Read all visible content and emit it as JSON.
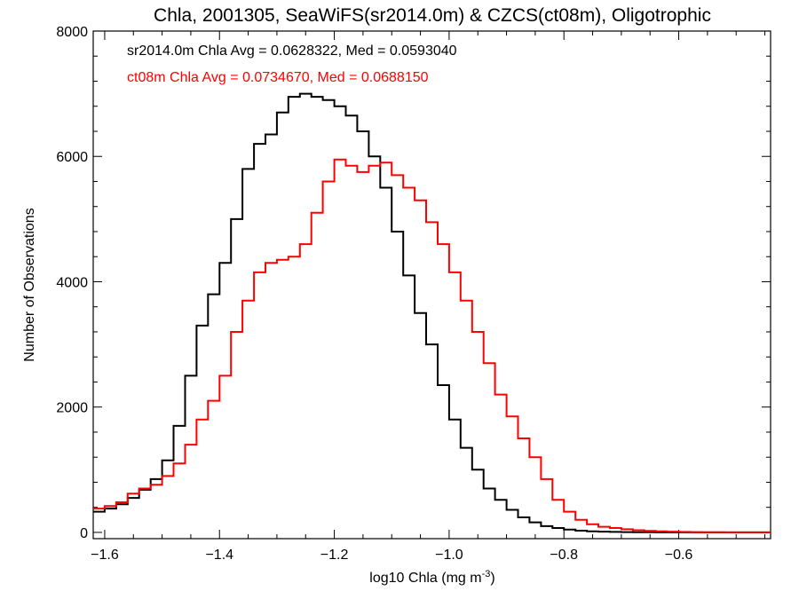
{
  "chart_data": {
    "type": "line",
    "title": "Chla, 2001305, SeaWiFS(sr2014.0m) & CZCS(ct08m), Oligotrophic",
    "xlabel": "log10 Chla (mg m",
    "xlabel_sup": "-3",
    "xlabel_end": ")",
    "ylabel": "Number of Observations",
    "xlim": [
      -1.62,
      -0.44
    ],
    "ylim": [
      -100,
      8000
    ],
    "x_ticks": [
      -1.6,
      -1.4,
      -1.2,
      -1.0,
      -0.8,
      -0.6
    ],
    "x_tick_labels": [
      "−1.6",
      "−1.4",
      "−1.2",
      "−1.0",
      "−0.8",
      "−0.6"
    ],
    "y_ticks": [
      0,
      2000,
      4000,
      6000,
      8000
    ],
    "y_tick_labels": [
      "0",
      "2000",
      "4000",
      "6000",
      "8000"
    ],
    "grid": false,
    "series": [
      {
        "name": "sr2014.0m",
        "color": "#000000",
        "annotation": "sr2014.0m Chla Avg = 0.0628322, Med = 0.0593040",
        "x": [
          -1.62,
          -1.6,
          -1.58,
          -1.56,
          -1.54,
          -1.52,
          -1.5,
          -1.48,
          -1.46,
          -1.44,
          -1.42,
          -1.4,
          -1.38,
          -1.36,
          -1.34,
          -1.32,
          -1.3,
          -1.28,
          -1.26,
          -1.24,
          -1.22,
          -1.2,
          -1.18,
          -1.16,
          -1.14,
          -1.12,
          -1.1,
          -1.08,
          -1.06,
          -1.04,
          -1.02,
          -1.0,
          -0.98,
          -0.96,
          -0.94,
          -0.92,
          -0.9,
          -0.88,
          -0.86,
          -0.84,
          -0.82,
          -0.8,
          -0.78,
          -0.76,
          -0.74,
          -0.72,
          -0.7,
          -0.68,
          -0.66,
          -0.64,
          -0.62,
          -0.6,
          -0.58,
          -0.56,
          -0.54,
          -0.52,
          -0.5,
          -0.48,
          -0.46,
          -0.44
        ],
        "y": [
          330,
          380,
          450,
          550,
          680,
          850,
          1150,
          1700,
          2500,
          3300,
          3800,
          4300,
          5000,
          5800,
          6200,
          6350,
          6700,
          6950,
          7000,
          6950,
          6900,
          6800,
          6650,
          6400,
          6000,
          5500,
          4800,
          4100,
          3500,
          3000,
          2350,
          1800,
          1350,
          1000,
          700,
          520,
          360,
          240,
          160,
          100,
          70,
          45,
          28,
          18,
          12,
          8,
          5,
          3,
          2,
          1,
          1,
          0,
          0,
          0,
          0,
          0,
          0,
          0,
          0,
          0
        ]
      },
      {
        "name": "ct08m",
        "color": "#ff0000",
        "annotation": "ct08m Chla Avg = 0.0734670, Med = 0.0688150",
        "x": [
          -1.62,
          -1.6,
          -1.58,
          -1.56,
          -1.54,
          -1.52,
          -1.5,
          -1.48,
          -1.46,
          -1.44,
          -1.42,
          -1.4,
          -1.38,
          -1.36,
          -1.34,
          -1.32,
          -1.3,
          -1.28,
          -1.26,
          -1.24,
          -1.22,
          -1.2,
          -1.18,
          -1.16,
          -1.14,
          -1.12,
          -1.1,
          -1.08,
          -1.06,
          -1.04,
          -1.02,
          -1.0,
          -0.98,
          -0.96,
          -0.94,
          -0.92,
          -0.9,
          -0.88,
          -0.86,
          -0.84,
          -0.82,
          -0.8,
          -0.78,
          -0.76,
          -0.74,
          -0.72,
          -0.7,
          -0.68,
          -0.66,
          -0.64,
          -0.62,
          -0.6,
          -0.58,
          -0.56,
          -0.54,
          -0.52,
          -0.5,
          -0.48,
          -0.46,
          -0.44
        ],
        "y": [
          380,
          420,
          480,
          620,
          700,
          760,
          900,
          1100,
          1400,
          1800,
          2100,
          2500,
          3200,
          3700,
          4150,
          4300,
          4350,
          4400,
          4600,
          5100,
          5600,
          5950,
          5850,
          5750,
          5850,
          5900,
          5700,
          5500,
          5300,
          4950,
          4600,
          4150,
          3700,
          3200,
          2700,
          2200,
          1850,
          1500,
          1200,
          850,
          520,
          330,
          200,
          130,
          90,
          70,
          50,
          35,
          25,
          18,
          12,
          8,
          5,
          3,
          2,
          1,
          1,
          0,
          0,
          0
        ]
      }
    ]
  }
}
